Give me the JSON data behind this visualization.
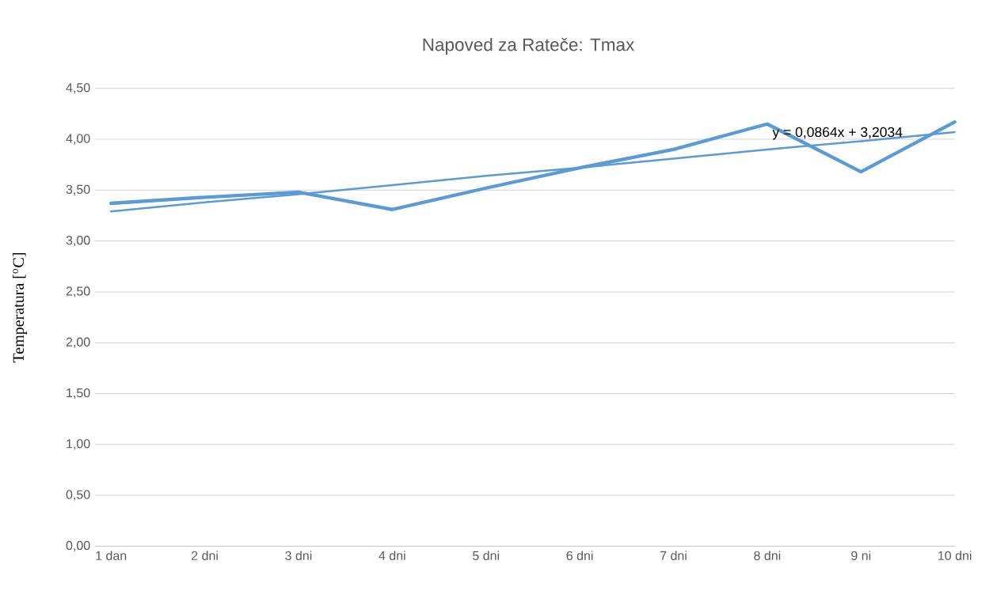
{
  "chart_data": {
    "type": "line",
    "title": "Napoved za Rateče: Tmax",
    "ylabel": "Temperatura [$^{o}$C]",
    "categories": [
      "1 dan",
      "2 dni",
      "3 dni",
      "4 dni",
      "5 dni",
      "6 dni",
      "7 dni",
      "8 dni",
      "9 ni",
      "10 dni"
    ],
    "series": [
      {
        "color": "#5b9bd5",
        "values": [
          3.37,
          3.43,
          3.48,
          3.31,
          3.52,
          3.72,
          3.9,
          4.15,
          3.68,
          4.17
        ]
      },
      {
        "type": "line",
        "color": "#5b9bd5",
        "values": [
          3.29,
          3.38,
          3.46,
          3.55,
          3.64,
          3.72,
          3.81,
          3.9,
          3.98,
          4.07
        ]
      }
    ],
    "ylim": [
      0,
      4.5
    ],
    "yticks": [
      {
        "value": 0,
        "label": "0,00"
      },
      {
        "value": 0.5,
        "label": "0,50"
      },
      {
        "value": 1,
        "label": "1,00"
      },
      {
        "value": 1.5,
        "label": "1,50"
      },
      {
        "value": 2,
        "label": "2,00"
      },
      {
        "value": 2.5,
        "label": "2,50"
      },
      {
        "value": 3,
        "label": "3,00"
      },
      {
        "value": 3.5,
        "label": "3,50"
      },
      {
        "value": 4,
        "label": "4,00"
      },
      {
        "value": 4.5,
        "label": "4,50"
      }
    ],
    "grid": "y",
    "marker": "none",
    "line_style": "solid",
    "annotations": [
      "y = 0,0864x + 3,2034"
    ]
  }
}
